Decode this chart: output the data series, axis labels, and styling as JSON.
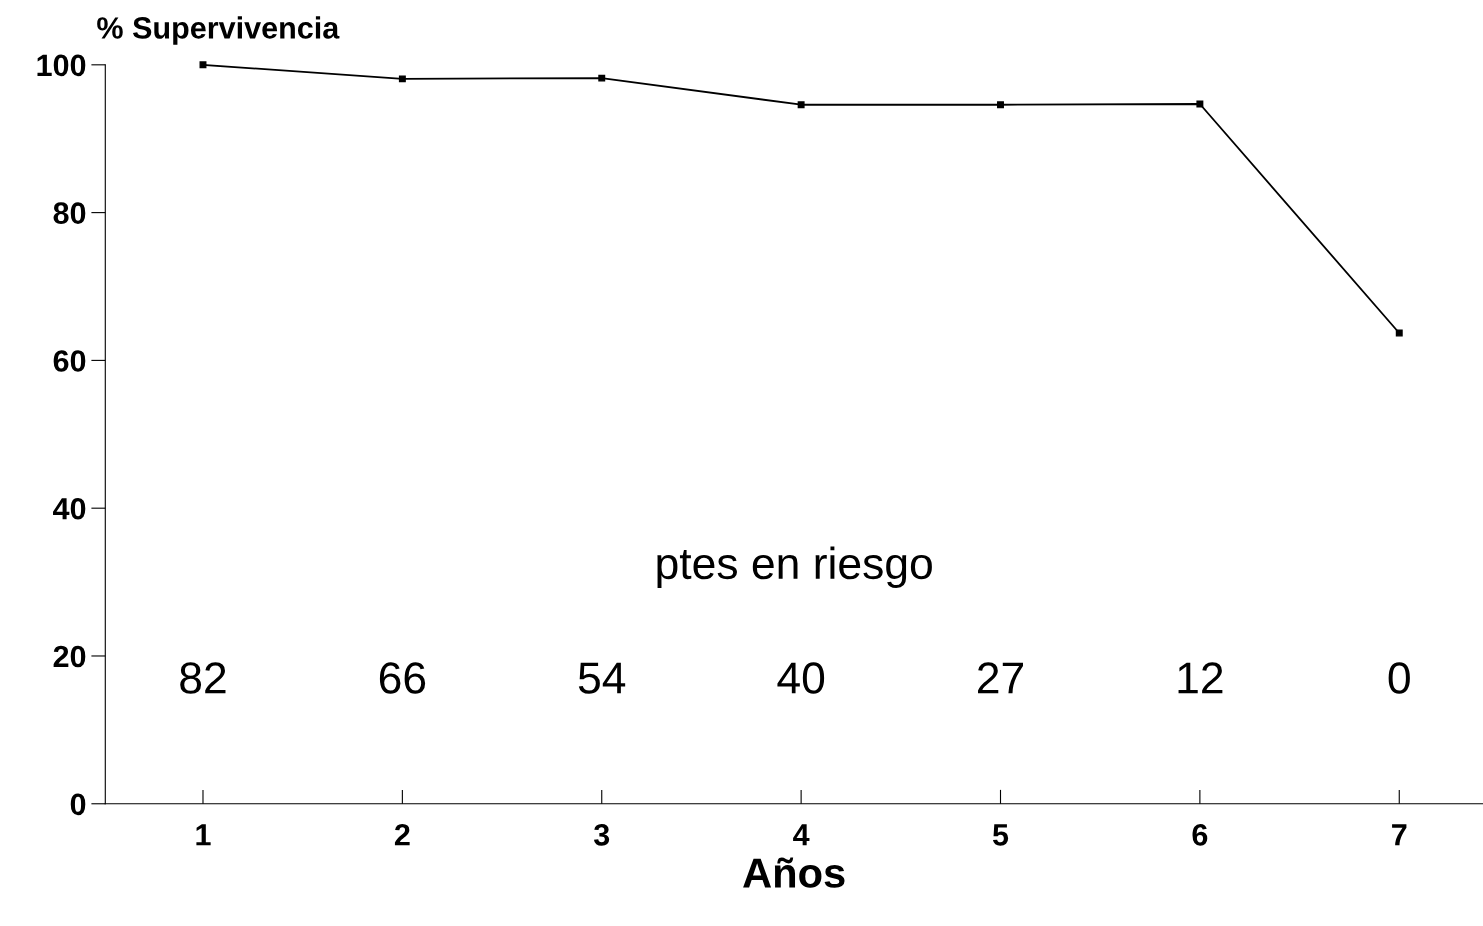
{
  "chart_data": {
    "type": "line",
    "ylabel": "% Supervivencia",
    "xlabel": "Años",
    "x": [
      1,
      2,
      3,
      4,
      5,
      6,
      7
    ],
    "series": [
      {
        "color": "#000000",
        "values": [
          100,
          98.1,
          98.2,
          94.6,
          94.6,
          94.7,
          63.7
        ]
      }
    ],
    "xlim": [
      0.51,
      7.42
    ],
    "xticks": [
      1,
      2,
      3,
      4,
      5,
      6,
      7
    ],
    "ylim": [
      0,
      100
    ],
    "yticks": [
      0,
      20,
      40,
      60,
      80,
      100
    ],
    "marker": "square",
    "line_style": "solid",
    "grid": false,
    "legend": false,
    "annotations": [
      "ptes en riesgo",
      "82",
      "66",
      "54",
      "40",
      "27",
      "12",
      "0"
    ]
  }
}
